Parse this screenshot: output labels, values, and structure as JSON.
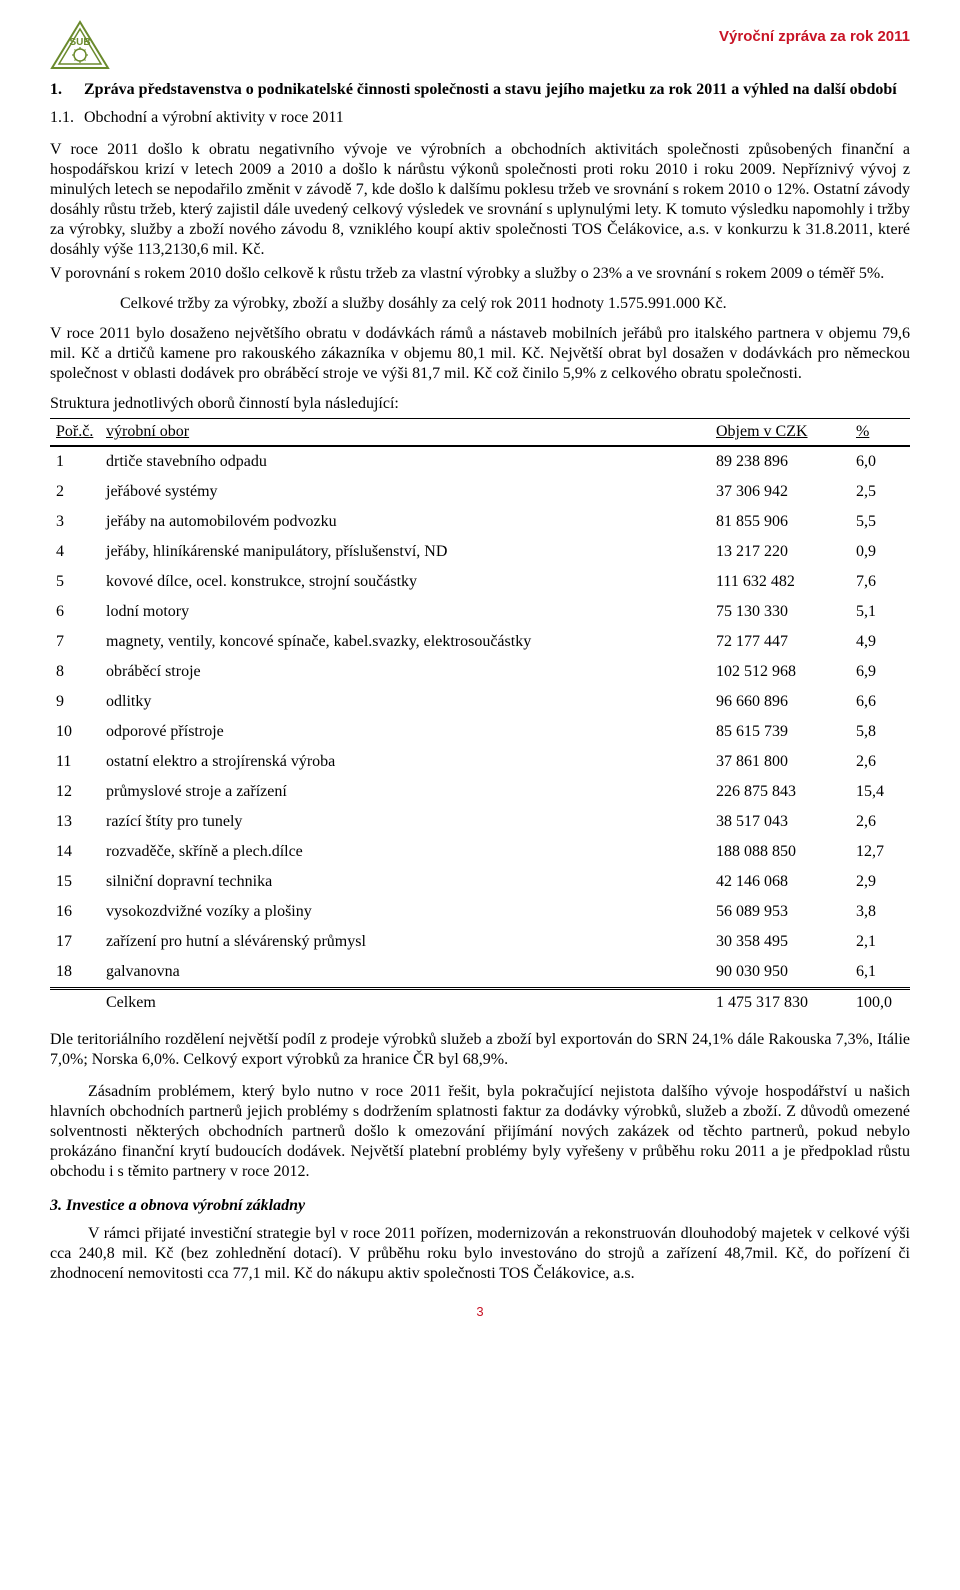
{
  "header": {
    "right_label": "Výroční zpráva za rok 2011",
    "right_color": "#c81426"
  },
  "section1": {
    "num": "1.",
    "title": "Zpráva představenstva o podnikatelské činnosti společnosti a stavu jejího majetku za rok 2011 a výhled na další období",
    "sub_num": "1.1.",
    "sub_title": "Obchodní a výrobní aktivity v roce 2011"
  },
  "para1": "V roce 2011 došlo k obratu negativního vývoje ve výrobních a obchodních aktivitách společnosti způsobených finanční a hospodářskou krizí v letech 2009 a 2010 a došlo k nárůstu výkonů společnosti proti roku 2010 i roku 2009. Nepříznivý vývoj z minulých letech se nepodařilo změnit v závodě 7, kde došlo k dalšímu poklesu tržeb ve srovnání s rokem 2010 o 12%. Ostatní závody dosáhly růstu tržeb, který zajistil dále uvedený celkový výsledek ve srovnání s uplynulými lety. K tomuto výsledku napomohly i tržby za výrobky, služby a zboží nového závodu 8, vzniklého koupí aktiv společnosti TOS Čelákovice, a.s. v konkurzu k 31.8.2011, které dosáhly výše 113,2130,6 mil. Kč.",
  "para2": "V porovnání s rokem 2010 došlo celkově k růstu tržeb za vlastní výrobky a služby o 23% a ve srovnání s rokem 2009 o téměř 5%.",
  "para3": "Celkové tržby za výrobky, zboží a služby dosáhly za celý rok 2011 hodnoty 1.575.991.000 Kč.",
  "para4": "V roce 2011 bylo dosaženo největšího obratu v dodávkách rámů a nástaveb mobilních jeřábů pro italského partnera v objemu 79,6 mil. Kč a drtičů kamene pro rakouského zákazníka v objemu 80,1 mil. Kč. Největší obrat byl dosažen v dodávkách pro německou společnost v oblasti dodávek pro obráběcí stroje ve výši 81,7 mil. Kč což činilo 5,9% z celkového obratu společnosti.",
  "struct_intro": "Struktura jednotlivých oborů činností byla následující:",
  "table": {
    "columns": {
      "c1": "Poř.č.",
      "c2": "výrobní obor",
      "c3": "Objem v CZK",
      "c4": "%"
    },
    "rows": [
      {
        "n": "1",
        "d": "drtiče stavebního odpadu",
        "v": "89 238 896",
        "p": "6,0"
      },
      {
        "n": "2",
        "d": "jeřábové systémy",
        "v": "37 306 942",
        "p": "2,5"
      },
      {
        "n": "3",
        "d": "jeřáby na automobilovém podvozku",
        "v": "81 855 906",
        "p": "5,5"
      },
      {
        "n": "4",
        "d": "jeřáby, hliníkárenské manipulátory, příslušenství, ND",
        "v": "13 217 220",
        "p": "0,9"
      },
      {
        "n": "5",
        "d": "kovové dílce, ocel. konstrukce, strojní součástky",
        "v": "111 632 482",
        "p": "7,6"
      },
      {
        "n": "6",
        "d": "lodní motory",
        "v": "75 130 330",
        "p": "5,1"
      },
      {
        "n": "7",
        "d": "magnety, ventily, koncové spínače, kabel.svazky, elektrosoučástky",
        "v": "72 177 447",
        "p": "4,9"
      },
      {
        "n": "8",
        "d": "obráběcí stroje",
        "v": "102 512 968",
        "p": "6,9"
      },
      {
        "n": "9",
        "d": "odlitky",
        "v": "96 660 896",
        "p": "6,6"
      },
      {
        "n": "10",
        "d": "odporové přístroje",
        "v": "85 615 739",
        "p": "5,8"
      },
      {
        "n": "11",
        "d": "ostatní elektro a strojírenská výroba",
        "v": "37 861 800",
        "p": "2,6"
      },
      {
        "n": "12",
        "d": "průmyslové stroje a zařízení",
        "v": "226 875 843",
        "p": "15,4"
      },
      {
        "n": "13",
        "d": "razící štíty pro tunely",
        "v": "38 517 043",
        "p": "2,6"
      },
      {
        "n": "14",
        "d": "rozvaděče, skříně a plech.dílce",
        "v": "188 088 850",
        "p": "12,7"
      },
      {
        "n": "15",
        "d": "silniční dopravní technika",
        "v": "42 146 068",
        "p": "2,9"
      },
      {
        "n": "16",
        "d": "vysokozdvižné vozíky a plošiny",
        "v": "56 089 953",
        "p": "3,8"
      },
      {
        "n": "17",
        "d": "zařízení pro hutní a slévárenský průmysl",
        "v": "30 358 495",
        "p": "2,1"
      },
      {
        "n": "18",
        "d": "galvanovna",
        "v": "90 030 950",
        "p": "6,1"
      }
    ],
    "total": {
      "d": "Celkem",
      "v": "1 475 317 830",
      "p": "100,0"
    }
  },
  "para5": "Dle teritoriálního rozdělení největší podíl z  prodeje výrobků služeb a zboží byl exportován do SRN 24,1% dále Rakouska 7,3%, Itálie 7,0%; Norska 6,0%. Celkový export výrobků za hranice ČR byl 68,9%.",
  "para6": "Zásadním problémem, který bylo nutno v roce 2011 řešit, byla pokračující nejistota dalšího vývoje hospodářství u našich hlavních obchodních partnerů jejich problémy s dodržením splatnosti faktur za dodávky výrobků, služeb a zboží. Z důvodů omezené solventnosti některých obchodních partnerů došlo k omezování přijímání nových zakázek od těchto partnerů, pokud nebylo prokázáno finanční krytí budoucích dodávek. Největší platební problémy byly vyřešeny v průběhu roku 2011 a je předpoklad růstu obchodu i s těmito partnery v roce 2012.",
  "section3": {
    "title": "3. Investice a obnova výrobní základny"
  },
  "para7": "V rámci přijaté investiční strategie byl v roce 2011 pořízen, modernizován a rekonstruován dlouhodobý majetek v celkové výši cca 240,8 mil. Kč (bez zohlednění dotací). V průběhu roku bylo investováno do strojů a zařízení 48,7mil. Kč, do pořízení či zhodnocení nemovitosti cca 77,1 mil. Kč do nákupu aktiv společnosti TOS Čelákovice, a.s.",
  "page_number": "3"
}
